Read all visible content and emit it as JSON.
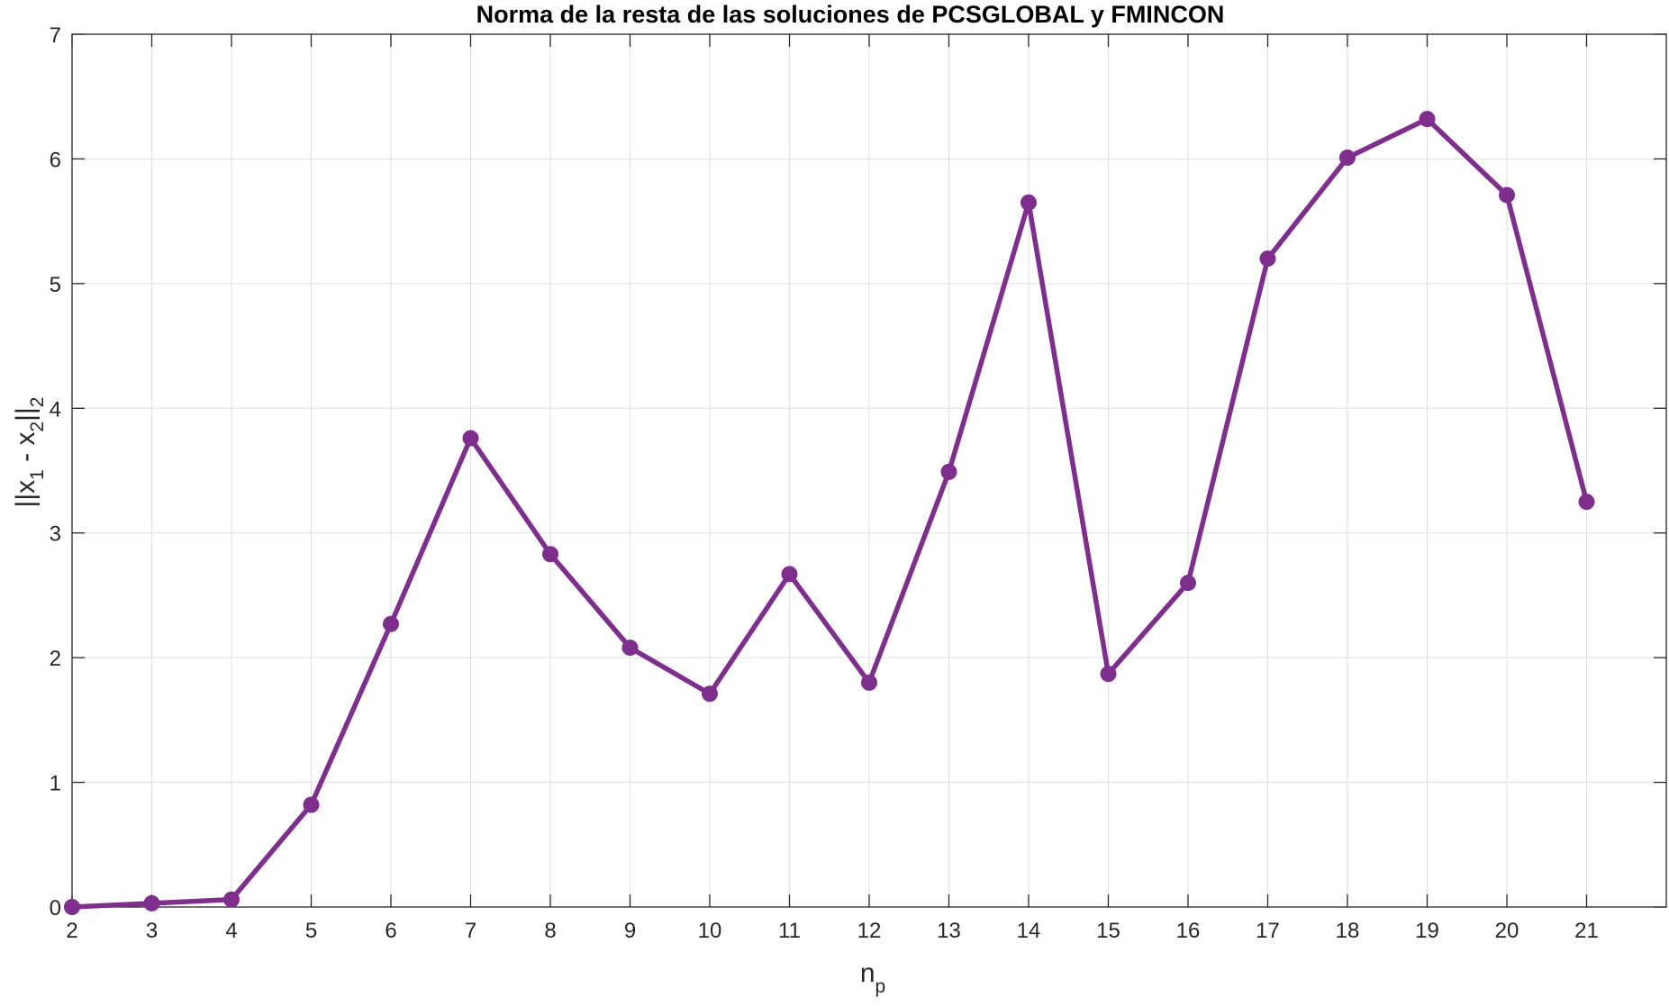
{
  "chart_data": {
    "type": "line",
    "title": "Norma de la resta de las soluciones de PCSGLOBAL y FMINCON",
    "xlabel": {
      "main": "n",
      "sub": "p"
    },
    "ylabel": {
      "p1": "||x",
      "s1": "1",
      "p2": " - x",
      "s2": "2",
      "p3": "||",
      "s3": "2"
    },
    "x": [
      2,
      3,
      4,
      5,
      6,
      7,
      8,
      9,
      10,
      11,
      12,
      13,
      14,
      15,
      16,
      17,
      18,
      19,
      20,
      21
    ],
    "series": [
      {
        "values": [
          0.0,
          0.03,
          0.06,
          0.82,
          2.27,
          3.76,
          2.83,
          2.08,
          1.71,
          2.67,
          1.8,
          3.49,
          5.65,
          1.87,
          2.6,
          5.2,
          6.01,
          6.32,
          5.71,
          3.25
        ],
        "color": "#7e2f8e",
        "marker": "circle"
      }
    ],
    "xlim": [
      2,
      22
    ],
    "ylim": [
      0,
      7
    ],
    "xticks": [
      "2",
      "3",
      "4",
      "5",
      "6",
      "7",
      "8",
      "9",
      "10",
      "11",
      "12",
      "13",
      "14",
      "15",
      "16",
      "17",
      "18",
      "19",
      "20",
      "21"
    ],
    "yticks": [
      "0",
      "1",
      "2",
      "3",
      "4",
      "5",
      "6",
      "7"
    ],
    "grid": true,
    "box": true,
    "colors": {
      "line": "#7e2f8e",
      "axis": "#262626",
      "grid": "#dfdfdf"
    }
  }
}
